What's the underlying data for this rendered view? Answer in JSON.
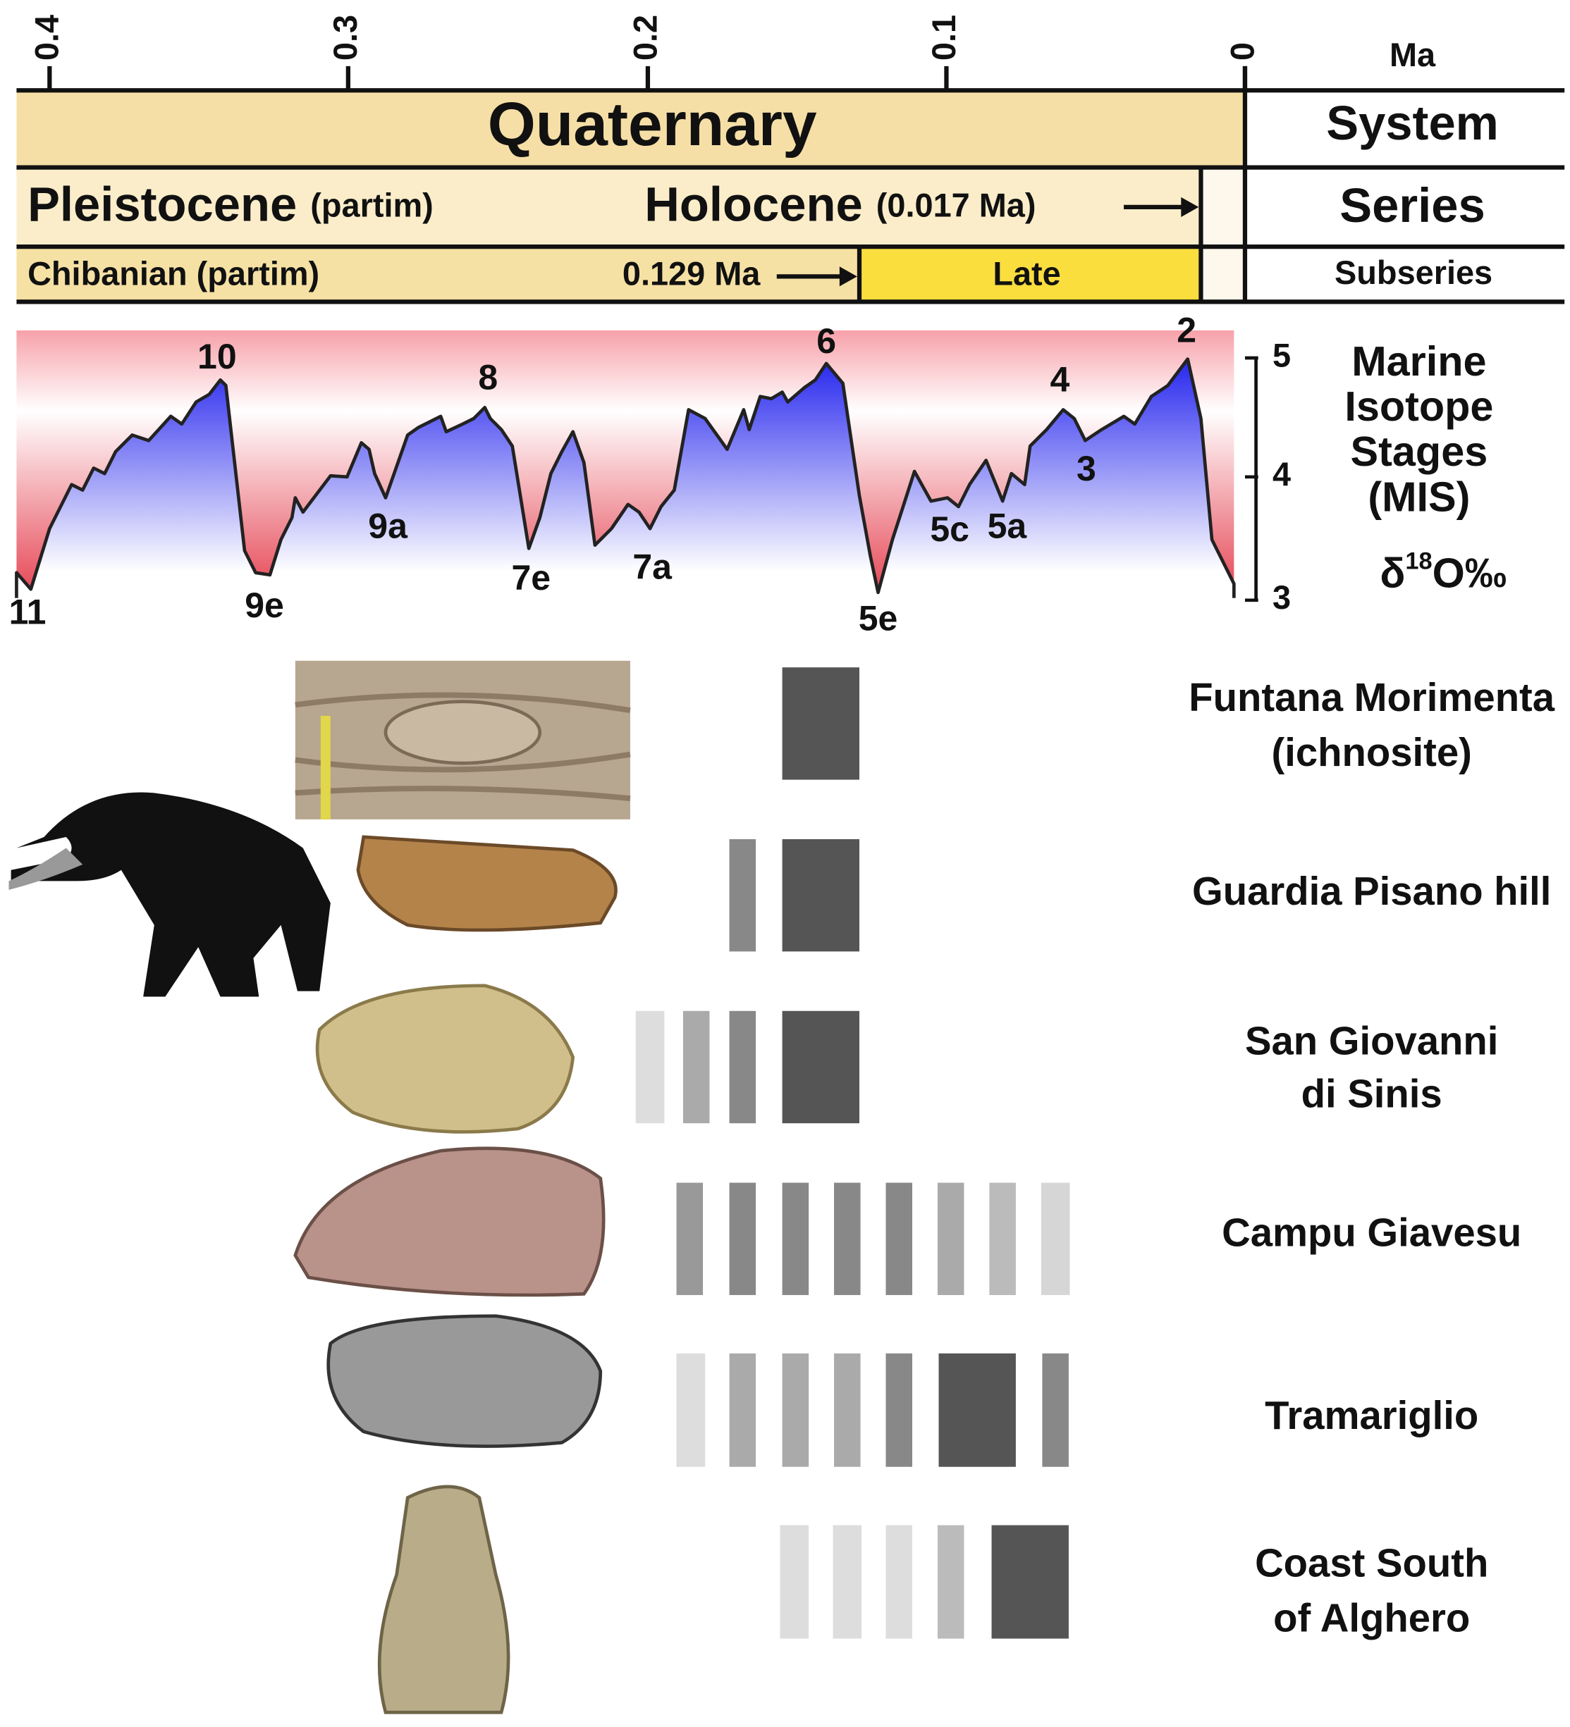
{
  "time_axis": {
    "ticks": [
      "0.4",
      "0.3",
      "0.2",
      "0.1",
      "0"
    ],
    "unit": "Ma"
  },
  "chronostratigraphy": {
    "system_label": "System",
    "system": "Quaternary",
    "series_label": "Series",
    "pleistocene": "Pleistocene",
    "pleistocene_note": "(partim)",
    "holocene": "Holocene",
    "holocene_note": "(0.017 Ma)",
    "subseries_label": "Subseries",
    "chibanian": "Chibanian (partim)",
    "late_boundary": "0.129 Ma",
    "late": "Late"
  },
  "mis": {
    "title_lines": [
      "Marine",
      "Isotope",
      "Stages",
      "(MIS)"
    ],
    "unit_prefix": "δ",
    "unit_superscript": "18",
    "unit_suffix": "O‰",
    "axis_ticks": [
      "5",
      "4",
      "3"
    ],
    "stages": [
      "11",
      "10",
      "9e",
      "9a",
      "8",
      "7e",
      "7a",
      "6",
      "5e",
      "5c",
      "5a",
      "4",
      "3",
      "2"
    ]
  },
  "sites": [
    {
      "lines": [
        "Funtana Morimenta",
        "(ichnosite)"
      ]
    },
    {
      "lines": [
        "Guardia Pisano hill"
      ]
    },
    {
      "lines": [
        "San Giovanni",
        "di Sinis"
      ]
    },
    {
      "lines": [
        "Campu Giavesu"
      ]
    },
    {
      "lines": [
        "Tramariglio"
      ]
    },
    {
      "lines": [
        "Coast South",
        "of Alghero"
      ]
    }
  ]
}
